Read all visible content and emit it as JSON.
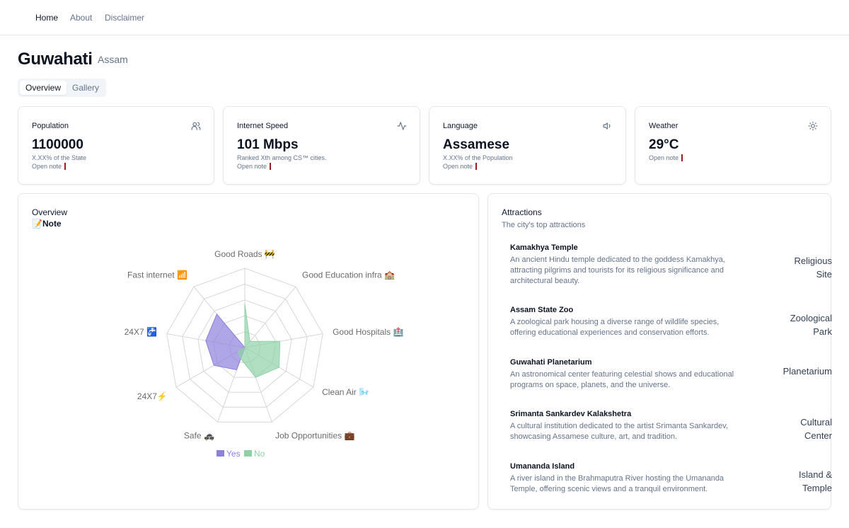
{
  "nav": {
    "home": "Home",
    "about": "About",
    "disclaimer": "Disclaimer"
  },
  "city": {
    "name": "Guwahati",
    "state": "Assam"
  },
  "tabs": {
    "overview": "Overview",
    "gallery": "Gallery"
  },
  "stats": {
    "population": {
      "label": "Population",
      "value": "1100000",
      "sub": "X.XX% of the State",
      "note": "Open note",
      "icon": "users-icon"
    },
    "internet": {
      "label": "Internet Speed",
      "value": "101 Mbps",
      "sub": "Ranked Xth among CS™ cities.",
      "note": "Open note",
      "icon": "activity-icon"
    },
    "language": {
      "label": "Language",
      "value": "Assamese",
      "sub": "X.XX% of the Population",
      "note": "Open note",
      "icon": "speaker-icon"
    },
    "weather": {
      "label": "Weather",
      "value": "29°C",
      "note": "Open note",
      "icon": "sun-icon"
    }
  },
  "overview": {
    "title": "Overview",
    "note": "📝Note"
  },
  "chart_data": {
    "type": "radar",
    "categories": [
      "Good Roads 🚧",
      "Good Education infra 🏫",
      "Good Hospitals 🏥",
      "Clean Air 🌬️",
      "Job Opportunities 💼",
      "Safe 🚓",
      "24X7⚡",
      "24X7 🚰",
      "Fast internet 📶"
    ],
    "series": [
      {
        "name": "Yes",
        "color": "#8b80dc",
        "values": [
          0,
          0,
          0,
          0,
          0,
          0.3,
          0.45,
          0.5,
          0.55
        ]
      },
      {
        "name": "No",
        "color": "#8fd1a6",
        "values": [
          0.55,
          0.1,
          0.45,
          0.5,
          0.4,
          0.15,
          0.1,
          0,
          0
        ]
      }
    ],
    "range": [
      0,
      1
    ],
    "legend": "bottom"
  },
  "attractions": {
    "title": "Attractions",
    "subtitle": "The city's top attractions",
    "items": [
      {
        "name": "Kamakhya Temple",
        "desc": "An ancient Hindu temple dedicated to the goddess Kamakhya, attracting pilgrims and tourists for its religious significance and architectural beauty.",
        "type": "Religious Site"
      },
      {
        "name": "Assam State Zoo",
        "desc": "A zoological park housing a diverse range of wildlife species, offering educational experiences and conservation efforts.",
        "type": "Zoological Park"
      },
      {
        "name": "Guwahati Planetarium",
        "desc": "An astronomical center featuring celestial shows and educational programs on space, planets, and the universe.",
        "type": "Planetarium"
      },
      {
        "name": "Srimanta Sankardev Kalakshetra",
        "desc": "A cultural institution dedicated to the artist Srimanta Sankardev, showcasing Assamese culture, art, and tradition.",
        "type": "Cultural Center"
      },
      {
        "name": "Umananda Island",
        "desc": "A river island in the Brahmaputra River hosting the Umananda Temple, offering scenic views and a tranquil environment.",
        "type": "Island & Temple"
      }
    ]
  }
}
